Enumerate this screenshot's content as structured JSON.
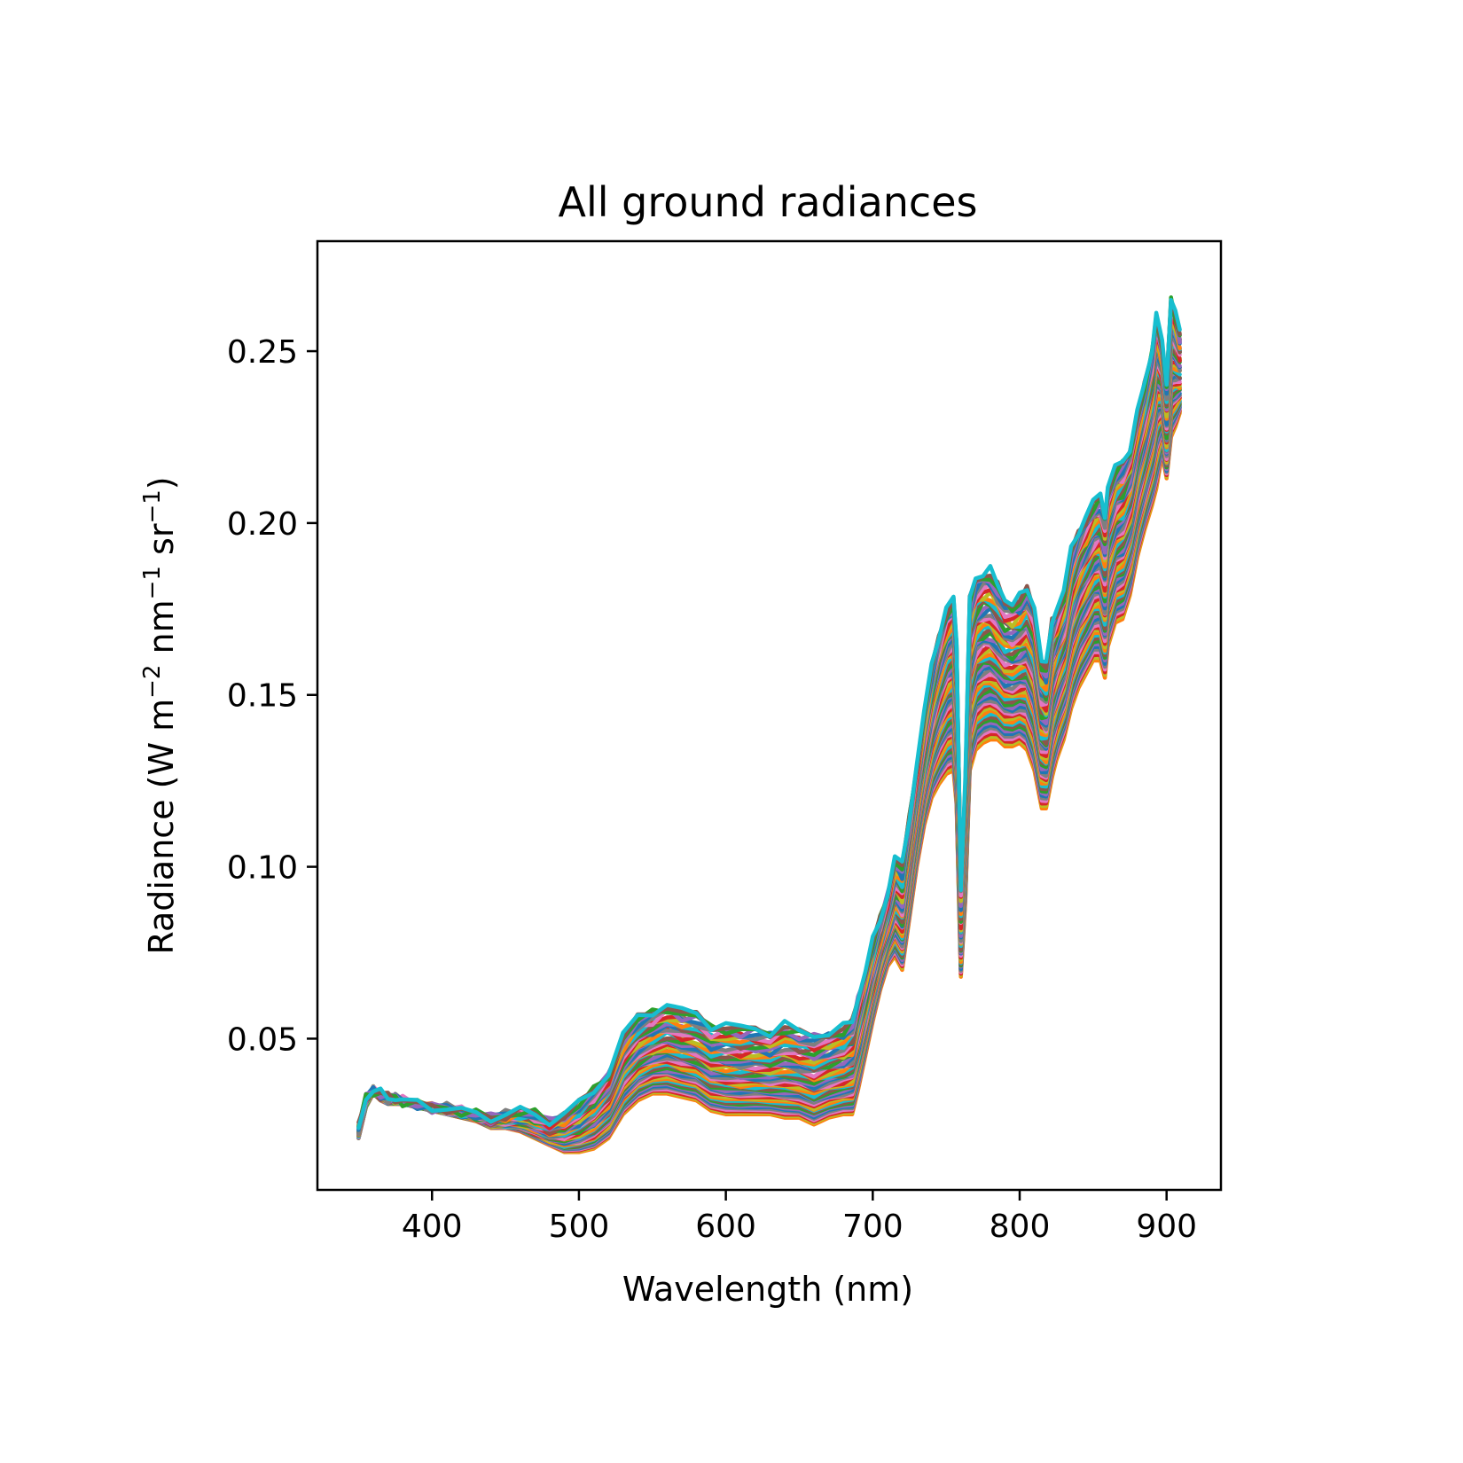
{
  "chart_data": {
    "type": "line",
    "title": "All ground radiances",
    "xlabel": "Wavelength (nm)",
    "ylabel_parts": {
      "prefix": "Radiance (W m",
      "exp1": "−2",
      "mid1": " nm",
      "exp2": "−1",
      "mid2": " sr",
      "exp3": "−1",
      "suffix": ")"
    },
    "xlim": [
      322,
      937
    ],
    "ylim": [
      0.006,
      0.282
    ],
    "xticks": [
      {
        "value": 400,
        "label": "400"
      },
      {
        "value": 500,
        "label": "500"
      },
      {
        "value": 600,
        "label": "600"
      },
      {
        "value": 700,
        "label": "700"
      },
      {
        "value": 800,
        "label": "800"
      },
      {
        "value": 900,
        "label": "900"
      }
    ],
    "yticks": [
      {
        "value": 0.05,
        "label": "0.05"
      },
      {
        "value": 0.1,
        "label": "0.10"
      },
      {
        "value": 0.15,
        "label": "0.15"
      },
      {
        "value": 0.2,
        "label": "0.20"
      },
      {
        "value": 0.25,
        "label": "0.25"
      }
    ],
    "grid": false,
    "legend": "none",
    "series_colors": [
      "#ff7f0e",
      "#bcbd22",
      "#d62728",
      "#e377c2",
      "#7f7f7f",
      "#1f77b4",
      "#9467bd",
      "#2ca02c",
      "#8c564b",
      "#17becf"
    ],
    "envelope": {
      "x": [
        350,
        355,
        360,
        365,
        370,
        375,
        380,
        390,
        400,
        410,
        420,
        430,
        440,
        450,
        460,
        470,
        480,
        490,
        500,
        510,
        520,
        530,
        540,
        550,
        560,
        570,
        580,
        590,
        600,
        610,
        620,
        630,
        640,
        650,
        660,
        670,
        680,
        686,
        690,
        695,
        700,
        705,
        710,
        715,
        720,
        725,
        730,
        735,
        740,
        745,
        750,
        755,
        757,
        760,
        763,
        766,
        770,
        775,
        780,
        785,
        790,
        795,
        800,
        805,
        810,
        815,
        818,
        822,
        825,
        830,
        835,
        840,
        845,
        850,
        855,
        858,
        860,
        865,
        870,
        875,
        880,
        885,
        890,
        893,
        897,
        900,
        903,
        906,
        909
      ],
      "low": [
        0.021,
        0.03,
        0.034,
        0.032,
        0.031,
        0.031,
        0.031,
        0.03,
        0.029,
        0.028,
        0.027,
        0.026,
        0.024,
        0.024,
        0.023,
        0.021,
        0.019,
        0.017,
        0.017,
        0.018,
        0.021,
        0.028,
        0.032,
        0.034,
        0.034,
        0.033,
        0.032,
        0.029,
        0.028,
        0.028,
        0.028,
        0.028,
        0.027,
        0.027,
        0.025,
        0.027,
        0.028,
        0.028,
        0.035,
        0.045,
        0.055,
        0.064,
        0.071,
        0.074,
        0.07,
        0.085,
        0.1,
        0.112,
        0.12,
        0.124,
        0.127,
        0.128,
        0.118,
        0.068,
        0.09,
        0.128,
        0.134,
        0.136,
        0.137,
        0.137,
        0.135,
        0.135,
        0.136,
        0.134,
        0.128,
        0.117,
        0.117,
        0.126,
        0.131,
        0.137,
        0.146,
        0.152,
        0.156,
        0.16,
        0.16,
        0.155,
        0.164,
        0.171,
        0.172,
        0.179,
        0.19,
        0.198,
        0.205,
        0.21,
        0.22,
        0.213,
        0.225,
        0.228,
        0.232
      ],
      "high": [
        0.024,
        0.033,
        0.035,
        0.034,
        0.033,
        0.033,
        0.032,
        0.031,
        0.03,
        0.03,
        0.029,
        0.028,
        0.027,
        0.028,
        0.029,
        0.028,
        0.026,
        0.028,
        0.031,
        0.035,
        0.04,
        0.051,
        0.056,
        0.058,
        0.06,
        0.058,
        0.057,
        0.054,
        0.054,
        0.053,
        0.053,
        0.052,
        0.054,
        0.052,
        0.051,
        0.052,
        0.053,
        0.055,
        0.062,
        0.07,
        0.078,
        0.085,
        0.092,
        0.103,
        0.1,
        0.115,
        0.13,
        0.145,
        0.158,
        0.168,
        0.175,
        0.178,
        0.165,
        0.095,
        0.125,
        0.178,
        0.184,
        0.186,
        0.186,
        0.182,
        0.178,
        0.177,
        0.178,
        0.181,
        0.176,
        0.16,
        0.158,
        0.172,
        0.175,
        0.18,
        0.192,
        0.198,
        0.202,
        0.206,
        0.208,
        0.203,
        0.21,
        0.216,
        0.218,
        0.222,
        0.232,
        0.24,
        0.25,
        0.262,
        0.252,
        0.24,
        0.266,
        0.262,
        0.255
      ]
    },
    "num_series": 60
  }
}
